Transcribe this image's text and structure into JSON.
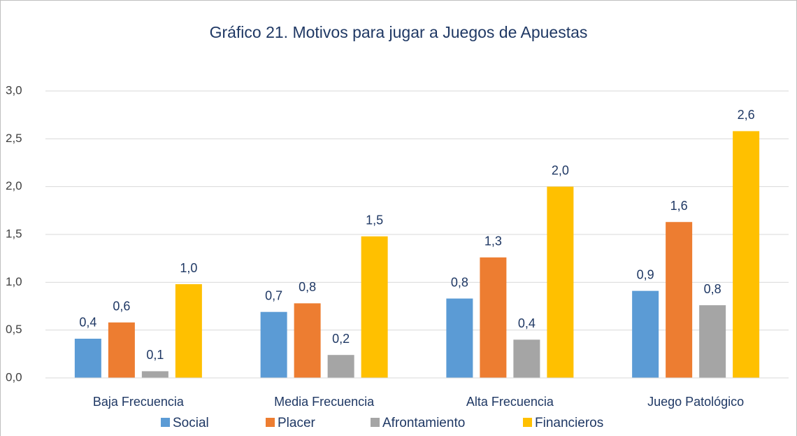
{
  "chart_data": {
    "type": "bar",
    "title": "Gráfico 21. Motivos para jugar a Juegos de Apuestas",
    "categories": [
      "Baja Frecuencia",
      "Media Frecuencia",
      "Alta Frecuencia",
      "Juego Patológico"
    ],
    "series": [
      {
        "name": "Social",
        "color": "#5b9bd5",
        "values": [
          0.41,
          0.69,
          0.83,
          0.91
        ],
        "value_labels": [
          "0,4",
          "0,7",
          "0,8",
          "0,9"
        ]
      },
      {
        "name": "Placer",
        "color": "#ed7d31",
        "values": [
          0.58,
          0.78,
          1.26,
          1.63
        ],
        "value_labels": [
          "0,6",
          "0,8",
          "1,3",
          "1,6"
        ]
      },
      {
        "name": "Afrontamiento",
        "color": "#a5a5a5",
        "values": [
          0.07,
          0.24,
          0.4,
          0.76
        ],
        "value_labels": [
          "0,1",
          "0,2",
          "0,4",
          "0,8"
        ]
      },
      {
        "name": "Financieros",
        "color": "#ffc000",
        "values": [
          0.98,
          1.48,
          2.0,
          2.58
        ],
        "value_labels": [
          "1,0",
          "1,5",
          "2,0",
          "2,6"
        ]
      }
    ],
    "ylim": [
      0,
      3
    ],
    "yticks": [
      {
        "value": 0,
        "label": "0,0"
      },
      {
        "value": 0.5,
        "label": "0,5"
      },
      {
        "value": 1,
        "label": "1,0"
      },
      {
        "value": 1.5,
        "label": "1,5"
      },
      {
        "value": 2,
        "label": "2,0"
      },
      {
        "value": 2.5,
        "label": "2,5"
      },
      {
        "value": 3,
        "label": "3,0"
      }
    ],
    "grid": true,
    "legend": "bottom"
  }
}
